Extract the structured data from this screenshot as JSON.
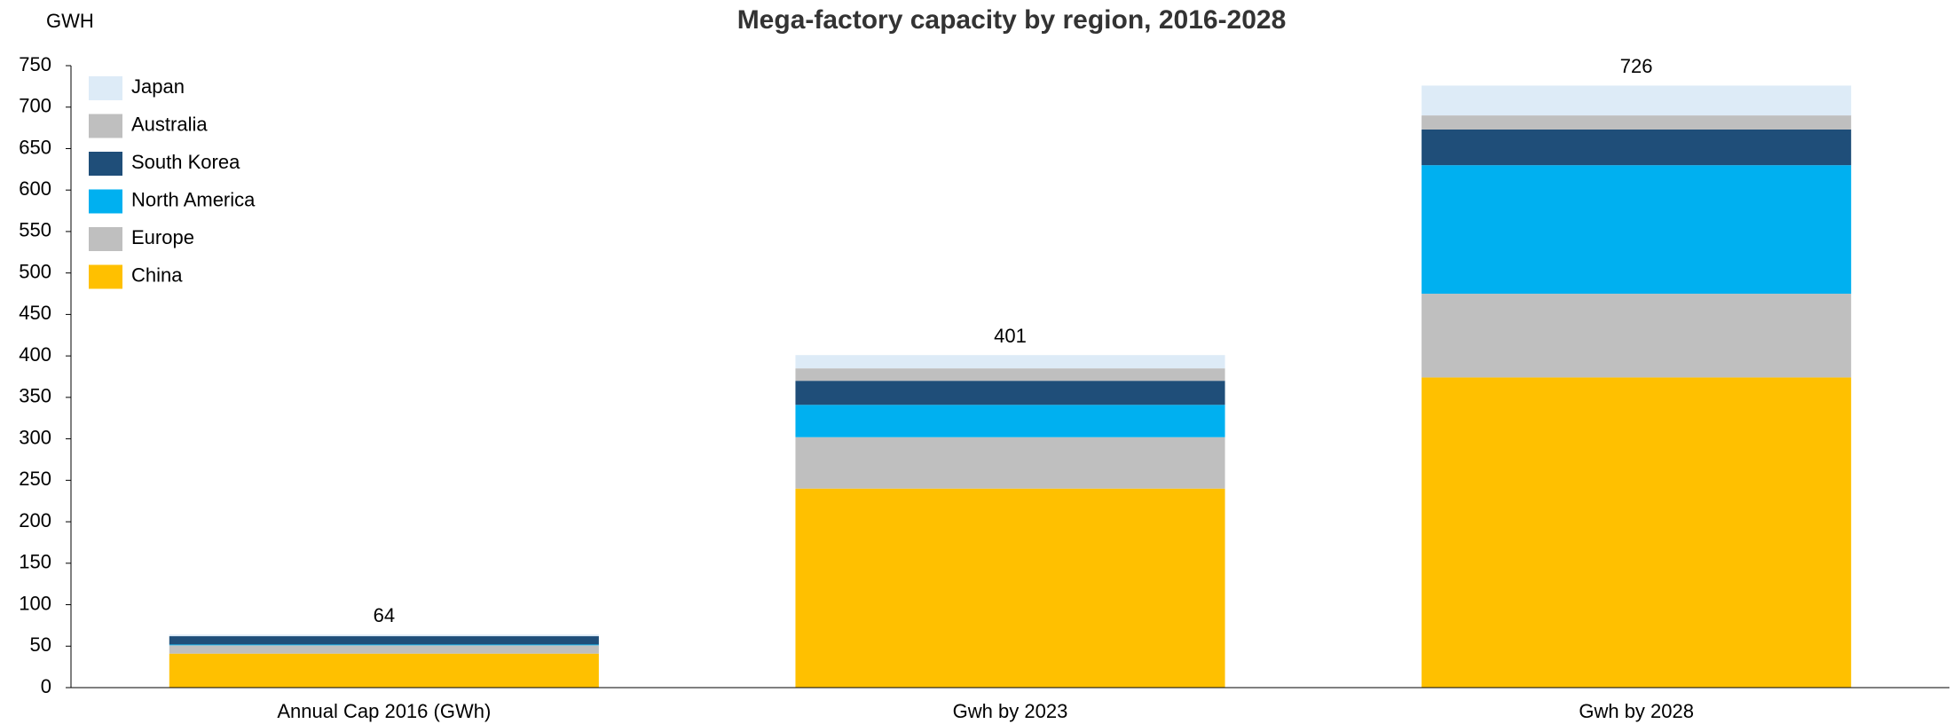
{
  "chart_data": {
    "type": "stacked-bar",
    "title": "Mega-factory capacity by region, 2016-2028",
    "y_label": "GWH",
    "categories": [
      "Annual Cap 2016 (GWh)",
      "Gwh by 2023",
      "Gwh by 2028"
    ],
    "series": [
      {
        "name": "China",
        "color": "#FFC000",
        "values": [
          41,
          240,
          374
        ]
      },
      {
        "name": "Europe",
        "color": "#BFBFBF",
        "values": [
          10,
          62,
          101
        ]
      },
      {
        "name": "North America",
        "color": "#00B0F0",
        "values": [
          1,
          39,
          155
        ]
      },
      {
        "name": "South Korea",
        "color": "#1F4E79",
        "values": [
          10,
          29,
          43
        ]
      },
      {
        "name": "Australia",
        "color": "#BFBFBF",
        "values": [
          0,
          15,
          17
        ]
      },
      {
        "name": "Japan",
        "color": "#DDEBF7",
        "values": [
          2,
          16,
          36
        ]
      }
    ],
    "totals": [
      64,
      401,
      726
    ],
    "ylim": [
      0,
      750
    ],
    "yticks": [
      0,
      50,
      100,
      150,
      200,
      250,
      300,
      350,
      400,
      450,
      500,
      550,
      600,
      650,
      700,
      750
    ],
    "grid": false,
    "legend": "top-left"
  }
}
